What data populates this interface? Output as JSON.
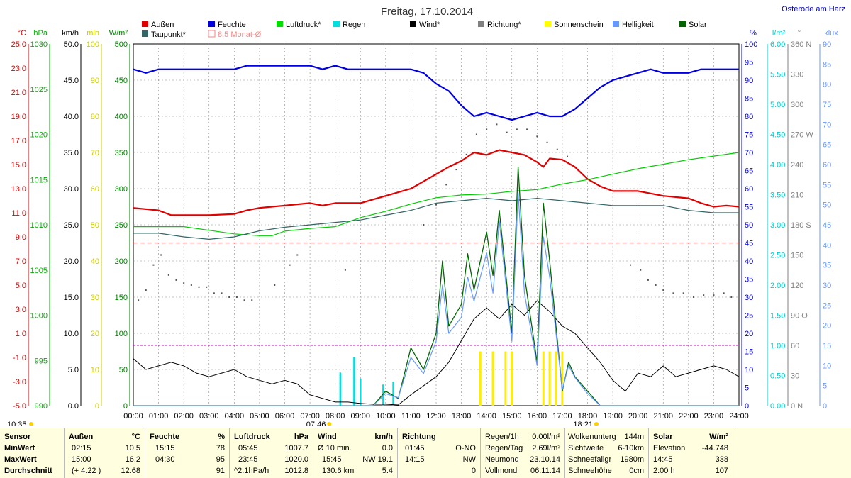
{
  "title": "Freitag, 17.10.2014",
  "location": "Osterode am Harz",
  "legend": [
    {
      "label": "Außen",
      "color": "#e00000"
    },
    {
      "label": "Feuchte",
      "color": "#0000e0"
    },
    {
      "label": "Luftdruck*",
      "color": "#00e000"
    },
    {
      "label": "Regen",
      "color": "#00e0e0"
    },
    {
      "label": "Wind*",
      "color": "#000000"
    },
    {
      "label": "Richtung*",
      "color": "#808080"
    },
    {
      "label": "Sonnenschein",
      "color": "#ffff00"
    },
    {
      "label": "Helligkeit",
      "color": "#6699ff"
    },
    {
      "label": "Solar",
      "color": "#006600"
    },
    {
      "label": "Taupunkt*",
      "color": "#336666"
    },
    {
      "label": "8.5 Monat-Ø",
      "color": "#ff8080"
    }
  ],
  "axes": {
    "left": [
      {
        "unit": "°C",
        "color": "#e00000",
        "ticks": [
          "25.0",
          "23.0",
          "21.0",
          "19.0",
          "17.0",
          "15.0",
          "13.0",
          "11.0",
          "9.0",
          "7.0",
          "5.0",
          "3.0",
          "1.0",
          "-1.0",
          "-3.0",
          "-5.0"
        ]
      },
      {
        "unit": "hPa",
        "color": "#00b000",
        "ticks": [
          "1030",
          "",
          "1025",
          "",
          "1020",
          "",
          "1015",
          "",
          "1010",
          "",
          "1005",
          "",
          "1000",
          "",
          "995",
          "",
          "990"
        ]
      },
      {
        "unit": "km/h",
        "color": "#000000",
        "ticks": [
          "50.0",
          "45.0",
          "40.0",
          "35.0",
          "30.0",
          "25.0",
          "20.0",
          "15.0",
          "10.0",
          "5.0",
          "0.0"
        ]
      },
      {
        "unit": "min",
        "color": "#cccc00",
        "ticks": [
          "100",
          "90",
          "80",
          "70",
          "60",
          "50",
          "40",
          "30",
          "20",
          "10",
          "0"
        ]
      },
      {
        "unit": "W/m²",
        "color": "#008000",
        "ticks": [
          "500",
          "450",
          "400",
          "350",
          "300",
          "250",
          "200",
          "150",
          "100",
          "50",
          "0"
        ]
      }
    ],
    "right": [
      {
        "unit": "%",
        "color": "#0000e0",
        "ticks": [
          "100",
          "95",
          "90",
          "85",
          "80",
          "75",
          "70",
          "65",
          "60",
          "55",
          "50",
          "45",
          "40",
          "35",
          "30",
          "25",
          "20",
          "15",
          "10",
          "5",
          "0"
        ]
      },
      {
        "unit": "l/m²",
        "color": "#00cccc",
        "ticks": [
          "6.00",
          "5.50",
          "5.00",
          "4.50",
          "4.00",
          "3.50",
          "3.00",
          "2.50",
          "2.00",
          "1.50",
          "1.00",
          "0.50",
          "0.00"
        ]
      },
      {
        "unit": "°",
        "color": "#808080",
        "ticks": [
          "360 N",
          "330",
          "300",
          "270 W",
          "240",
          "210",
          "180 S",
          "150",
          "120",
          "90 O",
          "60",
          "30",
          "0 N"
        ]
      },
      {
        "unit": "klux",
        "color": "#6699ff",
        "ticks": [
          "90",
          "85",
          "80",
          "75",
          "70",
          "65",
          "60",
          "55",
          "50",
          "45",
          "40",
          "35",
          "30",
          "25",
          "20",
          "15",
          "10",
          "5",
          "0"
        ]
      }
    ]
  },
  "x_ticks": [
    "00:00",
    "01:00",
    "02:00",
    "03:00",
    "04:00",
    "05:00",
    "06:00",
    "07:00",
    "08:00",
    "09:00",
    "10:00",
    "11:00",
    "12:00",
    "13:00",
    "14:00",
    "15:00",
    "16:00",
    "17:00",
    "18:00",
    "19:00",
    "20:00",
    "21:00",
    "22:00",
    "23:00",
    "24:00"
  ],
  "markers": {
    "left_time": "10:35",
    "sunrise": "07:46",
    "sunset": "18:21"
  },
  "chart_data": {
    "type": "line",
    "title": "Freitag, 17.10.2014",
    "x_range": [
      0,
      24
    ],
    "series": [
      {
        "name": "Außen",
        "unit": "°C",
        "ylim": [
          -5,
          25
        ],
        "x": [
          0,
          1,
          1.5,
          2,
          3,
          4,
          4.5,
          5,
          6,
          7,
          7.5,
          8,
          9,
          9.5,
          10,
          11,
          11.5,
          12,
          12.5,
          13,
          13.5,
          14,
          14.5,
          15,
          15.5,
          16,
          16.25,
          16.5,
          17,
          17.5,
          18,
          18.5,
          19,
          20,
          21,
          22,
          22.5,
          23,
          23.5,
          24
        ],
        "values": [
          11.4,
          11.2,
          10.8,
          10.8,
          10.8,
          10.9,
          11.2,
          11.4,
          11.6,
          11.8,
          11.6,
          11.8,
          11.8,
          12.1,
          12.4,
          13.0,
          13.6,
          14.2,
          14.8,
          15.3,
          16.0,
          15.8,
          16.2,
          16.0,
          15.8,
          15.2,
          14.8,
          15.5,
          15.4,
          14.8,
          13.8,
          13.2,
          12.8,
          12.8,
          12.4,
          12.2,
          11.8,
          11.5,
          11.6,
          11.5
        ]
      },
      {
        "name": "Feuchte",
        "unit": "%",
        "ylim": [
          0,
          100
        ],
        "x": [
          0,
          0.5,
          1,
          4,
          4.5,
          7,
          7.5,
          8,
          8.5,
          11,
          11.5,
          12,
          12.5,
          13,
          13.5,
          14,
          14.5,
          15,
          15.5,
          16,
          16.5,
          17,
          17.5,
          18,
          18.5,
          19,
          20,
          20.5,
          21,
          22,
          22.5,
          23,
          24
        ],
        "values": [
          93,
          92,
          93,
          93,
          94,
          94,
          93,
          94,
          93,
          93,
          92,
          89,
          87,
          83,
          80,
          81,
          80,
          79,
          80,
          81,
          80,
          80,
          82,
          85,
          88,
          90,
          92,
          93,
          92,
          92,
          93,
          93,
          93
        ]
      },
      {
        "name": "Luftdruck*",
        "unit": "hPa",
        "ylim": [
          990,
          1030
        ],
        "x": [
          0,
          2,
          3,
          4,
          5,
          5.5,
          6,
          7,
          8,
          9,
          10,
          11,
          12,
          13,
          14,
          15,
          16,
          17,
          18,
          19,
          20,
          21,
          22,
          23,
          24
        ],
        "values": [
          1009.8,
          1009.8,
          1009.4,
          1009.0,
          1008.8,
          1008.8,
          1009.3,
          1009.6,
          1009.8,
          1010.8,
          1011.5,
          1012.3,
          1013.0,
          1013.3,
          1013.4,
          1013.7,
          1013.9,
          1014.5,
          1015.0,
          1015.6,
          1016.2,
          1016.7,
          1017.2,
          1017.6,
          1018.0
        ]
      },
      {
        "name": "Taupunkt*",
        "unit": "°C",
        "ylim": [
          -5,
          25
        ],
        "x": [
          0,
          1,
          2,
          3,
          4,
          5,
          6,
          7,
          8,
          9,
          10,
          11,
          12,
          13,
          14,
          15,
          16,
          17,
          18,
          19,
          20,
          21,
          22,
          23,
          24
        ],
        "values": [
          9.3,
          9.3,
          9.0,
          8.8,
          9.0,
          9.5,
          9.8,
          10.0,
          10.2,
          10.4,
          10.8,
          11.2,
          11.8,
          12.0,
          12.2,
          12.0,
          12.2,
          12.0,
          11.8,
          11.6,
          11.6,
          11.6,
          11.2,
          11.0,
          11.0
        ]
      },
      {
        "name": "Wind*",
        "unit": "km/h",
        "ylim": [
          0,
          50
        ],
        "x": [
          0,
          0.5,
          1,
          1.5,
          2,
          2.5,
          3,
          3.5,
          4,
          4.5,
          5,
          5.5,
          6,
          6.5,
          7,
          7.5,
          8,
          8.5,
          9,
          9.5,
          10,
          10.5,
          11,
          12,
          12.5,
          13,
          13.5,
          14,
          14.5,
          15,
          15.5,
          16,
          16.5,
          17,
          17.5,
          18,
          18.5,
          19,
          19.5,
          20,
          20.5,
          21,
          21.5,
          22,
          22.5,
          23,
          23.5,
          24
        ],
        "values": [
          6.5,
          5.0,
          5.5,
          6.0,
          5.5,
          4.5,
          4.0,
          4.5,
          5.0,
          4.0,
          3.5,
          3.0,
          3.5,
          3.0,
          1.5,
          1.0,
          0.5,
          0.5,
          0.3,
          0.2,
          0.2,
          0.1,
          1.5,
          4.0,
          6.0,
          9.0,
          12.0,
          13.5,
          12.0,
          14.0,
          12.5,
          14.5,
          13.0,
          11.0,
          10.0,
          8.0,
          6.0,
          3.5,
          2.0,
          4.5,
          4.0,
          5.5,
          4.0,
          4.5,
          5.0,
          5.5,
          5.0,
          4.0
        ]
      },
      {
        "name": "Solar",
        "unit": "W/m²",
        "ylim": [
          0,
          500
        ],
        "x": [
          0,
          9.5,
          10,
          10.5,
          11,
          11.5,
          12,
          12.25,
          12.5,
          13,
          13.25,
          13.5,
          14,
          14.25,
          14.5,
          15,
          15.25,
          15.5,
          16,
          16.25,
          16.5,
          17,
          17.25,
          17.5,
          18,
          18.5,
          19,
          24
        ],
        "values": [
          0,
          0,
          20,
          10,
          80,
          50,
          100,
          200,
          110,
          140,
          210,
          160,
          240,
          180,
          270,
          100,
          330,
          180,
          60,
          280,
          200,
          20,
          60,
          40,
          20,
          0,
          0,
          0
        ]
      },
      {
        "name": "Helligkeit",
        "unit": "klux",
        "ylim": [
          0,
          90
        ],
        "x": [
          0,
          9.5,
          10,
          10.5,
          11,
          11.5,
          12,
          12.25,
          12.5,
          13,
          13.25,
          13.5,
          14,
          14.25,
          14.5,
          15,
          15.25,
          15.5,
          16,
          16.25,
          16.5,
          17,
          17.25,
          17.5,
          18,
          18.5,
          19,
          24
        ],
        "values": [
          0,
          0,
          3,
          2,
          12,
          8,
          16,
          30,
          18,
          22,
          32,
          26,
          38,
          28,
          46,
          16,
          53,
          28,
          10,
          42,
          32,
          4,
          10,
          7,
          3,
          0,
          0,
          0
        ]
      }
    ],
    "regen_bars_l": [
      {
        "x": 8.2,
        "value": 0.55
      },
      {
        "x": 8.75,
        "value": 0.8
      },
      {
        "x": 9.0,
        "value": 0.45
      },
      {
        "x": 9.9,
        "value": 0.35
      },
      {
        "x": 10.3,
        "value": 0.4
      }
    ],
    "sonnenschein_bars_min": [
      {
        "x": 13.75,
        "value": 15
      },
      {
        "x": 14.25,
        "value": 15
      },
      {
        "x": 14.75,
        "value": 15
      },
      {
        "x": 15.0,
        "value": 15
      },
      {
        "x": 16.25,
        "value": 15
      },
      {
        "x": 16.5,
        "value": 15
      },
      {
        "x": 16.75,
        "value": 15
      },
      {
        "x": 17.0,
        "value": 15
      }
    ],
    "richtung_points_deg": [
      {
        "x": 0.2,
        "value": 105
      },
      {
        "x": 0.5,
        "value": 115
      },
      {
        "x": 0.8,
        "value": 140
      },
      {
        "x": 1.1,
        "value": 150
      },
      {
        "x": 1.4,
        "value": 130
      },
      {
        "x": 1.7,
        "value": 125
      },
      {
        "x": 2.0,
        "value": 122
      },
      {
        "x": 2.3,
        "value": 120
      },
      {
        "x": 2.6,
        "value": 118
      },
      {
        "x": 2.9,
        "value": 118
      },
      {
        "x": 3.2,
        "value": 112
      },
      {
        "x": 3.5,
        "value": 112
      },
      {
        "x": 3.8,
        "value": 108
      },
      {
        "x": 4.1,
        "value": 108
      },
      {
        "x": 4.4,
        "value": 105
      },
      {
        "x": 4.7,
        "value": 105
      },
      {
        "x": 5.6,
        "value": 120
      },
      {
        "x": 6.2,
        "value": 140
      },
      {
        "x": 6.5,
        "value": 150
      },
      {
        "x": 8.4,
        "value": 135
      },
      {
        "x": 11.5,
        "value": 180
      },
      {
        "x": 12.0,
        "value": 200
      },
      {
        "x": 12.4,
        "value": 220
      },
      {
        "x": 12.8,
        "value": 235
      },
      {
        "x": 13.2,
        "value": 250
      },
      {
        "x": 13.6,
        "value": 270
      },
      {
        "x": 14.0,
        "value": 275
      },
      {
        "x": 14.4,
        "value": 280
      },
      {
        "x": 14.8,
        "value": 272
      },
      {
        "x": 15.2,
        "value": 275
      },
      {
        "x": 15.6,
        "value": 275
      },
      {
        "x": 16.0,
        "value": 268
      },
      {
        "x": 16.4,
        "value": 262
      },
      {
        "x": 16.8,
        "value": 255
      },
      {
        "x": 17.2,
        "value": 248
      },
      {
        "x": 19.7,
        "value": 140
      },
      {
        "x": 20.1,
        "value": 135
      },
      {
        "x": 20.4,
        "value": 125
      },
      {
        "x": 20.7,
        "value": 120
      },
      {
        "x": 21.0,
        "value": 115
      },
      {
        "x": 21.4,
        "value": 112
      },
      {
        "x": 21.8,
        "value": 112
      },
      {
        "x": 22.2,
        "value": 108
      },
      {
        "x": 22.6,
        "value": 110
      },
      {
        "x": 23.0,
        "value": 110
      },
      {
        "x": 23.4,
        "value": 112
      },
      {
        "x": 23.7,
        "value": 108
      }
    ],
    "reference_lines": [
      {
        "name": "8.5 Monat-Ø",
        "unit": "°C",
        "value": 8.5,
        "color": "#ff5050"
      },
      {
        "name": "Regen 1.00",
        "unit": "l/m²",
        "value": 1.0,
        "color": "#cc00cc"
      }
    ]
  },
  "table": {
    "sensor": {
      "h1": "Sensor",
      "rows": [
        "MinWert",
        "MaxWert",
        "Durchschnitt"
      ]
    },
    "aussen": {
      "h1": "Außen",
      "h2": "°C",
      "rows": [
        [
          "02:15",
          "10.5"
        ],
        [
          "15:00",
          "16.2"
        ],
        [
          "(+ 4.22 )",
          "12.68"
        ]
      ]
    },
    "feuchte": {
      "h1": "Feuchte",
      "h2": "%",
      "rows": [
        [
          "15:15",
          "78"
        ],
        [
          "04:30",
          "95"
        ],
        [
          "",
          "91"
        ]
      ]
    },
    "luftdruck": {
      "h1": "Luftdruck",
      "h2": "hPa",
      "rows": [
        [
          "05:45",
          "1007.7"
        ],
        [
          "23:45",
          "1020.0"
        ],
        [
          "^2.1hPa/h",
          "1012.8"
        ]
      ]
    },
    "wind": {
      "h1": "Wind",
      "h2": "km/h",
      "rows": [
        [
          "Ø 10 min.",
          "0.0"
        ],
        [
          "15:45",
          "NW 19.1"
        ],
        [
          "130.6 km",
          "5.4"
        ]
      ]
    },
    "richtung": {
      "h1": "Richtung",
      "rows": [
        [
          "01:45",
          "O-NO"
        ],
        [
          "14:15",
          "NW"
        ],
        [
          "",
          "0"
        ]
      ]
    },
    "regen": {
      "rows": [
        [
          "Regen/1h",
          "0.00l/m²"
        ],
        [
          "Regen/Tag",
          "2.69l/m²"
        ],
        [
          "Neumond",
          "23.10.14"
        ],
        [
          "Vollmond",
          "06.11.14"
        ]
      ]
    },
    "wolken": {
      "rows": [
        [
          "Wolkenunterg",
          "144m"
        ],
        [
          "Sichtweite",
          "6-10km"
        ],
        [
          "Schneefallgr",
          "1980m"
        ],
        [
          "Schneehöhe",
          "0cm"
        ]
      ]
    },
    "solar": {
      "h1": "Solar",
      "h2": "W/m²",
      "rows": [
        [
          "Elevation",
          "-44.748"
        ],
        [
          "14:45",
          "338"
        ],
        [
          "2:00 h",
          "107"
        ]
      ]
    }
  }
}
